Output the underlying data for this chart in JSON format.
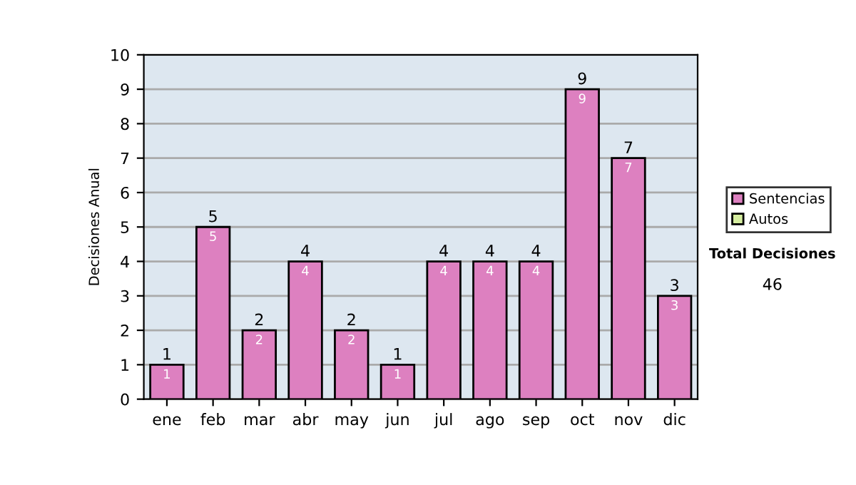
{
  "chart_data": {
    "type": "bar",
    "stacked": true,
    "ylabel": "Decisiones Anual",
    "categories": [
      "ene",
      "feb",
      "mar",
      "abr",
      "may",
      "jun",
      "jul",
      "ago",
      "sep",
      "oct",
      "nov",
      "dic"
    ],
    "series": [
      {
        "name": "Sentencias",
        "color": "#dd80c0",
        "values": [
          1,
          5,
          2,
          4,
          2,
          1,
          4,
          4,
          4,
          9,
          7,
          3
        ],
        "value_labels": [
          "1",
          "5",
          "2",
          "4",
          "2",
          "1",
          "4",
          "4",
          "4",
          "9",
          "7",
          "3"
        ]
      },
      {
        "name": "Autos",
        "color": "#d6eea0",
        "values": [
          0,
          0,
          0,
          0,
          0,
          0,
          0,
          0,
          0,
          0,
          0,
          0
        ]
      }
    ],
    "totals": [
      "1",
      "5",
      "2",
      "4",
      "2",
      "1",
      "4",
      "4",
      "4",
      "9",
      "7",
      "3"
    ],
    "ylim": [
      0,
      10
    ],
    "yticks": [
      0,
      1,
      2,
      3,
      4,
      5,
      6,
      7,
      8,
      9,
      10
    ],
    "grid": "y",
    "legend": "right",
    "annotations": [
      "Total Decisiones",
      "46"
    ]
  }
}
